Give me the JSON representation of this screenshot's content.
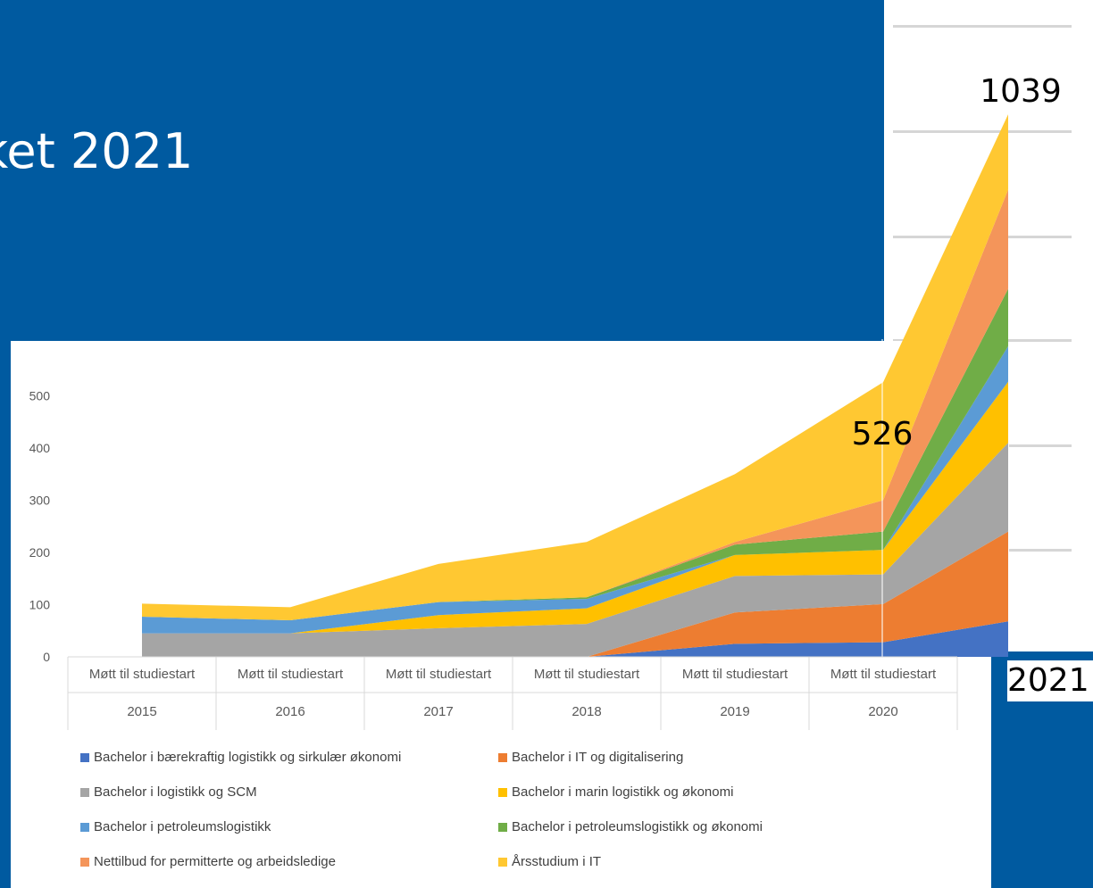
{
  "slide": {
    "title": "ket 2021"
  },
  "chart_data": {
    "type": "area",
    "stacked": true,
    "categories": [
      {
        "label": "Møtt til studiestart",
        "year": "2015"
      },
      {
        "label": "Møtt til studiestart",
        "year": "2016"
      },
      {
        "label": "Møtt til studiestart",
        "year": "2017"
      },
      {
        "label": "Møtt til studiestart",
        "year": "2018"
      },
      {
        "label": "Møtt til studiestart",
        "year": "2019"
      },
      {
        "label": "Møtt til studiestart",
        "year": "2020"
      }
    ],
    "ylim": [
      0,
      550
    ],
    "yticks": [
      "0",
      "100",
      "200",
      "300",
      "400",
      "500"
    ],
    "grid": false,
    "legend_position": "bottom",
    "series": [
      {
        "name": "Bachelor i bærekraftig logistikk og sirkulær økonomi",
        "color": "#4472c4",
        "values": [
          0,
          0,
          0,
          0,
          25,
          28
        ]
      },
      {
        "name": "Bachelor i IT og digitalisering",
        "color": "#ed7d31",
        "values": [
          0,
          0,
          0,
          0,
          60,
          73
        ]
      },
      {
        "name": "Bachelor i logistikk og SCM",
        "color": "#a5a5a5",
        "values": [
          45,
          45,
          55,
          63,
          70,
          57
        ]
      },
      {
        "name": "Bachelor i marin logistikk og økonomi",
        "color": "#ffc000",
        "values": [
          0,
          0,
          25,
          30,
          40,
          47
        ]
      },
      {
        "name": "Bachelor i petroleumslogistikk",
        "color": "#5b9bd5",
        "values": [
          32,
          25,
          25,
          18,
          0,
          0
        ]
      },
      {
        "name": "Bachelor i petroleumslogistikk og økonomi",
        "color": "#70ad47",
        "values": [
          0,
          0,
          0,
          3,
          20,
          35
        ]
      },
      {
        "name": "Nettilbud for permitterte og arbeidsledige",
        "color": "#f4955a",
        "values": [
          0,
          0,
          0,
          0,
          5,
          60
        ]
      },
      {
        "name": "Årsstudium i IT",
        "color": "#ffc832",
        "values": [
          25,
          25,
          73,
          106,
          130,
          226
        ]
      }
    ],
    "overlay_2021": {
      "year_label": "2021",
      "total_label": "1039",
      "values": [
        68,
        172,
        170,
        117,
        68,
        110,
        190,
        144
      ]
    },
    "annotations": [
      "526",
      "1039"
    ]
  }
}
